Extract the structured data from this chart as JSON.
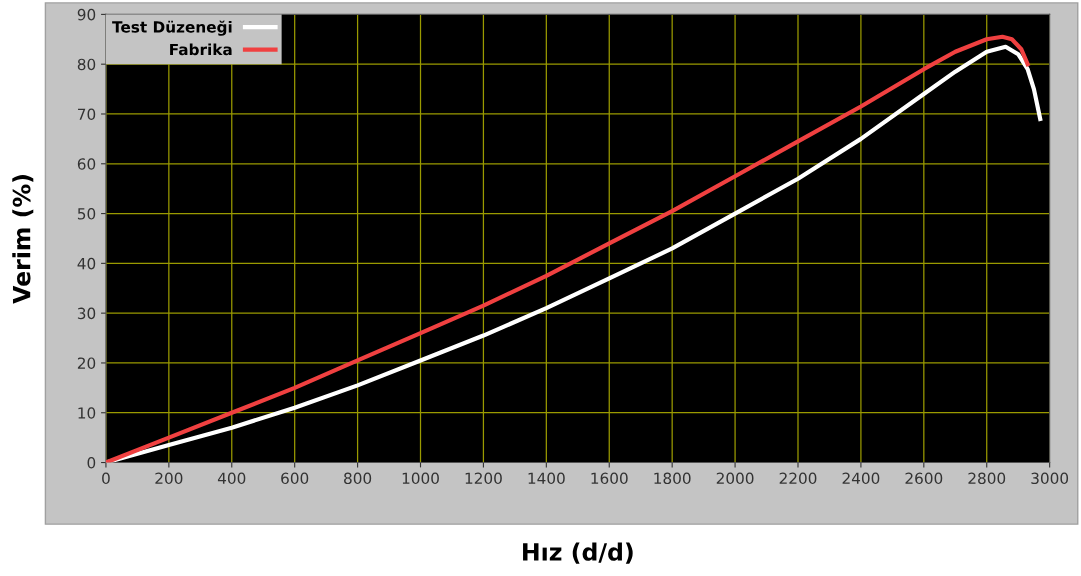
{
  "chart_data": {
    "type": "line",
    "xlabel": "Hız (d/d)",
    "ylabel": "Verim (%)",
    "xlim": [
      0,
      3000
    ],
    "ylim": [
      0,
      90
    ],
    "xticks": [
      0,
      200,
      400,
      600,
      800,
      1000,
      1200,
      1400,
      1600,
      1800,
      2000,
      2200,
      2400,
      2600,
      2800,
      3000
    ],
    "yticks": [
      0,
      10,
      20,
      30,
      40,
      50,
      60,
      70,
      80,
      90
    ],
    "grid": true,
    "legend": "top left",
    "marker": "none",
    "line_style": "solid",
    "series": [
      {
        "name": "Test Düzeneği",
        "color": "#ffffff",
        "x": [
          0,
          200,
          400,
          600,
          800,
          1000,
          1200,
          1400,
          1600,
          1800,
          2000,
          2200,
          2400,
          2600,
          2700,
          2800,
          2860,
          2900,
          2930,
          2950,
          2970
        ],
        "values": [
          0,
          3.5,
          7,
          11,
          15.5,
          20.5,
          25.5,
          31,
          37,
          43,
          50,
          57,
          65,
          74,
          78.5,
          82.5,
          83.5,
          82,
          79,
          75,
          69
        ]
      },
      {
        "name": "Fabrika",
        "color": "#f04040",
        "x": [
          0,
          200,
          400,
          600,
          800,
          1000,
          1200,
          1400,
          1600,
          1800,
          2000,
          2200,
          2400,
          2600,
          2700,
          2800,
          2850,
          2880,
          2910,
          2930
        ],
        "values": [
          0,
          5,
          10,
          15,
          20.5,
          26,
          31.5,
          37.5,
          44,
          50.5,
          57.5,
          64.5,
          71.5,
          79,
          82.5,
          85,
          85.5,
          85,
          83,
          80
        ]
      }
    ]
  }
}
